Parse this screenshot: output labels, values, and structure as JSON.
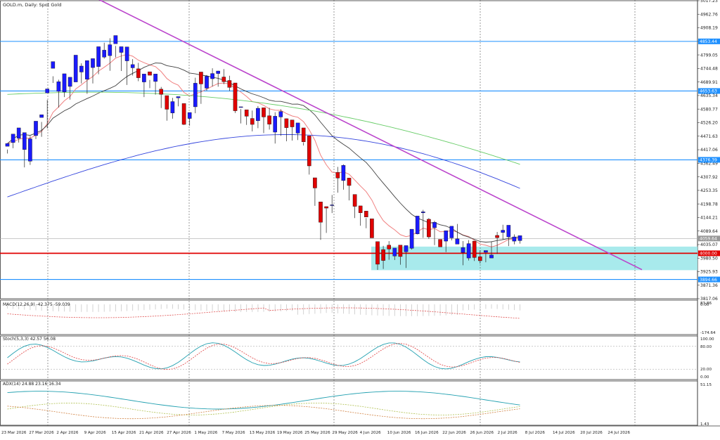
{
  "chart_data": [
    {
      "type": "candlestick",
      "title": "GOLD.m, Daily:  Spot Gold",
      "ylim": [
        3817.06,
        5017.23
      ],
      "price_ticks": [
        "5017.23",
        "4962.76",
        "4908.19",
        "4853.44",
        "4799.05",
        "4744.48",
        "4689.91",
        "4635.34",
        "4580.77",
        "4526.20",
        "4471.63",
        "4417.06",
        "4362.49",
        "4307.92",
        "4253.35",
        "4198.78",
        "4144.21",
        "4089.64",
        "4035.07",
        "3980.50",
        "3925.93",
        "3871.36",
        "3817.06"
      ],
      "date_labels": [
        "23 Mar 2026",
        "27 Mar 2026",
        "2 Apr 2026",
        "9 Apr 2026",
        "15 Apr 2026",
        "21 Apr 2026",
        "27 Apr 2026",
        "1 May 2026",
        "7 May 2026",
        "13 May 2026",
        "19 May 2026",
        "25 May 2026",
        "29 May 2026",
        "4 Jun 2026",
        "10 Jun 2026",
        "16 Jun 2026",
        "22 Jun 2026",
        "26 Jun 2026",
        "2 Jul 2026",
        "8 Jul 2026",
        "14 Jul 2026",
        "20 Jul 2026",
        "24 Jul 2026"
      ],
      "horizontal_levels": [
        {
          "value": 4853.44,
          "label": "4853.44",
          "color": "#1e90ff"
        },
        {
          "value": 4653.63,
          "label": "4653.63",
          "color": "#1e90ff"
        },
        {
          "value": 4376.39,
          "label": "4376.39",
          "color": "#1e90ff"
        },
        {
          "value": 4000.0,
          "label": "4000.00",
          "color": "#e00000"
        },
        {
          "value": 3894.66,
          "label": "3894.66",
          "color": "#1e90ff"
        }
      ],
      "current_price": {
        "value": 4059.64,
        "label": "4059.64"
      },
      "support_zone": [
        3932,
        4027
      ],
      "trendline": {
        "from": {
          "bar": 0,
          "price": 5025
        },
        "to": {
          "bar": 113,
          "price": 3934
        }
      },
      "candles": [
        [
          4431,
          4442,
          4418,
          4402
        ],
        [
          4446,
          4480,
          4468,
          4423
        ],
        [
          4463,
          4505,
          4485,
          4446
        ],
        [
          4418,
          4486,
          4463,
          4346
        ],
        [
          4371,
          4461,
          4472,
          4356
        ],
        [
          4474,
          4532,
          4509,
          4460
        ],
        [
          4547,
          4558,
          4529,
          4469
        ],
        [
          4646,
          4662,
          4618,
          4503
        ],
        [
          4745,
          4772,
          4713,
          4686
        ],
        [
          4652,
          4691,
          4699,
          4587
        ],
        [
          4650,
          4723,
          4702,
          4629
        ],
        [
          4672,
          4709,
          4681,
          4619
        ],
        [
          4690,
          4798,
          4753,
          4691
        ],
        [
          4730,
          4754,
          4765,
          4684
        ],
        [
          4701,
          4776,
          4756,
          4642
        ],
        [
          4748,
          4784,
          4766,
          4684
        ],
        [
          4752,
          4832,
          4830,
          4721
        ],
        [
          4790,
          4818,
          4848,
          4784
        ],
        [
          4796,
          4840,
          4866,
          4735
        ],
        [
          4844,
          4877,
          4835,
          4789
        ],
        [
          4809,
          4832,
          4820,
          4734
        ],
        [
          4775,
          4831,
          4787,
          4678
        ],
        [
          4747,
          4760,
          4782,
          4716
        ],
        [
          4743,
          4707,
          4767,
          4693
        ],
        [
          4690,
          4722,
          4711,
          4629
        ],
        [
          4731,
          4717,
          4698,
          4665
        ],
        [
          4692,
          4722,
          4710,
          4639
        ],
        [
          4661,
          4640,
          4670,
          4585
        ],
        [
          4635,
          4580,
          4585,
          4534
        ],
        [
          4565,
          4611,
          4626,
          4542
        ],
        [
          4626,
          4631,
          4625,
          4592
        ],
        [
          4603,
          4519,
          4554,
          4517
        ],
        [
          4543,
          4567,
          4553,
          4514
        ],
        [
          4590,
          4685,
          4707,
          4564
        ],
        [
          4730,
          4682,
          4694,
          4602
        ],
        [
          4665,
          4713,
          4718,
          4655
        ],
        [
          4703,
          4724,
          4745,
          4672
        ],
        [
          4724,
          4734,
          4735,
          4671
        ],
        [
          4710,
          4691,
          4742,
          4681
        ],
        [
          4696,
          4668,
          4715,
          4654
        ],
        [
          4686,
          4574,
          4629,
          4565
        ],
        [
          4589,
          4590,
          4581,
          4523
        ],
        [
          4578,
          4552,
          4576,
          4517
        ],
        [
          4543,
          4519,
          4575,
          4491
        ],
        [
          4534,
          4584,
          4593,
          4504
        ],
        [
          4586,
          4549,
          4564,
          4484
        ],
        [
          4554,
          4520,
          4586,
          4498
        ],
        [
          4488,
          4552,
          4568,
          4442
        ],
        [
          4549,
          4571,
          4580,
          4473
        ],
        [
          4542,
          4506,
          4543,
          4451
        ],
        [
          4537,
          4509,
          4533,
          4454
        ],
        [
          4484,
          4525,
          4508,
          4456
        ],
        [
          4505,
          4449,
          4447,
          4434
        ],
        [
          4473,
          4352,
          4371,
          4317
        ],
        [
          4304,
          4263,
          4299,
          4191
        ],
        [
          4207,
          4125,
          4124,
          4054
        ],
        [
          4188,
          4182,
          4181,
          4082
        ],
        [
          4194,
          4195,
          4235,
          4162
        ],
        [
          4326,
          4303,
          4348,
          4244
        ],
        [
          4293,
          4354,
          4358,
          4256
        ],
        [
          4303,
          4273,
          4292,
          4213
        ],
        [
          4237,
          4189,
          4214,
          4142
        ],
        [
          4191,
          4163,
          4162,
          4111
        ],
        [
          4170,
          4146,
          4142,
          4101
        ],
        [
          4139,
          4062,
          4095,
          4074
        ],
        [
          4047,
          3956,
          4045,
          3933
        ],
        [
          4015,
          3971,
          4030,
          3937
        ],
        [
          4033,
          4017,
          4049,
          3974
        ],
        [
          3989,
          4021,
          4008,
          3973
        ],
        [
          4033,
          3987,
          4029,
          3954
        ],
        [
          4006,
          4031,
          4016,
          3941
        ],
        [
          4020,
          4097,
          4096,
          4015
        ],
        [
          4078,
          4150,
          4123,
          4076
        ],
        [
          4163,
          4167,
          4175,
          4062
        ],
        [
          4137,
          4066,
          4142,
          4058
        ],
        [
          4103,
          4125,
          4131,
          4033
        ],
        [
          4056,
          4026,
          4050,
          4033
        ],
        [
          4049,
          4091,
          4085,
          4005
        ],
        [
          4062,
          4109,
          4097,
          4052
        ],
        [
          4037,
          4058,
          4118,
          4052
        ],
        [
          4003,
          4023,
          4049,
          3952
        ],
        [
          3981,
          4039,
          4053,
          3971
        ],
        [
          4049,
          3983,
          4028,
          3969
        ],
        [
          3986,
          3970,
          4012,
          3959
        ],
        [
          4004,
          4011,
          4003,
          3964
        ],
        [
          3981,
          3993,
          4048,
          3987
        ],
        [
          4072,
          4063,
          4086,
          3998
        ],
        [
          4084,
          4093,
          4115,
          4056
        ],
        [
          4066,
          4113,
          4088,
          4029
        ],
        [
          4049,
          4066,
          4076,
          4036
        ],
        [
          4051,
          4071,
          4067,
          4039
        ]
      ],
      "ma_red_name": "",
      "ma_black_name": "",
      "ma_green_name": "",
      "ma_blue_name": ""
    },
    {
      "type": "macd",
      "label": "MACD(12,26,9) -42.375 -59.039",
      "ticks": [
        "83.86",
        "0.00",
        "-174.64"
      ]
    },
    {
      "type": "stochastic",
      "label": "Stoch(5,3,3) 42.57 56.08",
      "ticks": [
        "100.00",
        "80.00",
        "20.00",
        "0.00"
      ]
    },
    {
      "type": "adx",
      "label": "ADX(14) 24.88 23.16 16.34",
      "ticks": [
        "51.15",
        "1.43"
      ]
    }
  ],
  "colors": {
    "bull": "#1a1aff",
    "bear": "#e00000",
    "ma_red": "#f08080",
    "ma_black": "#404040",
    "ma_green": "#66cc66",
    "ma_blue": "#3344dd",
    "trend": "#bb44cc",
    "zone": "#9ee8ea",
    "grid": "#555555"
  }
}
